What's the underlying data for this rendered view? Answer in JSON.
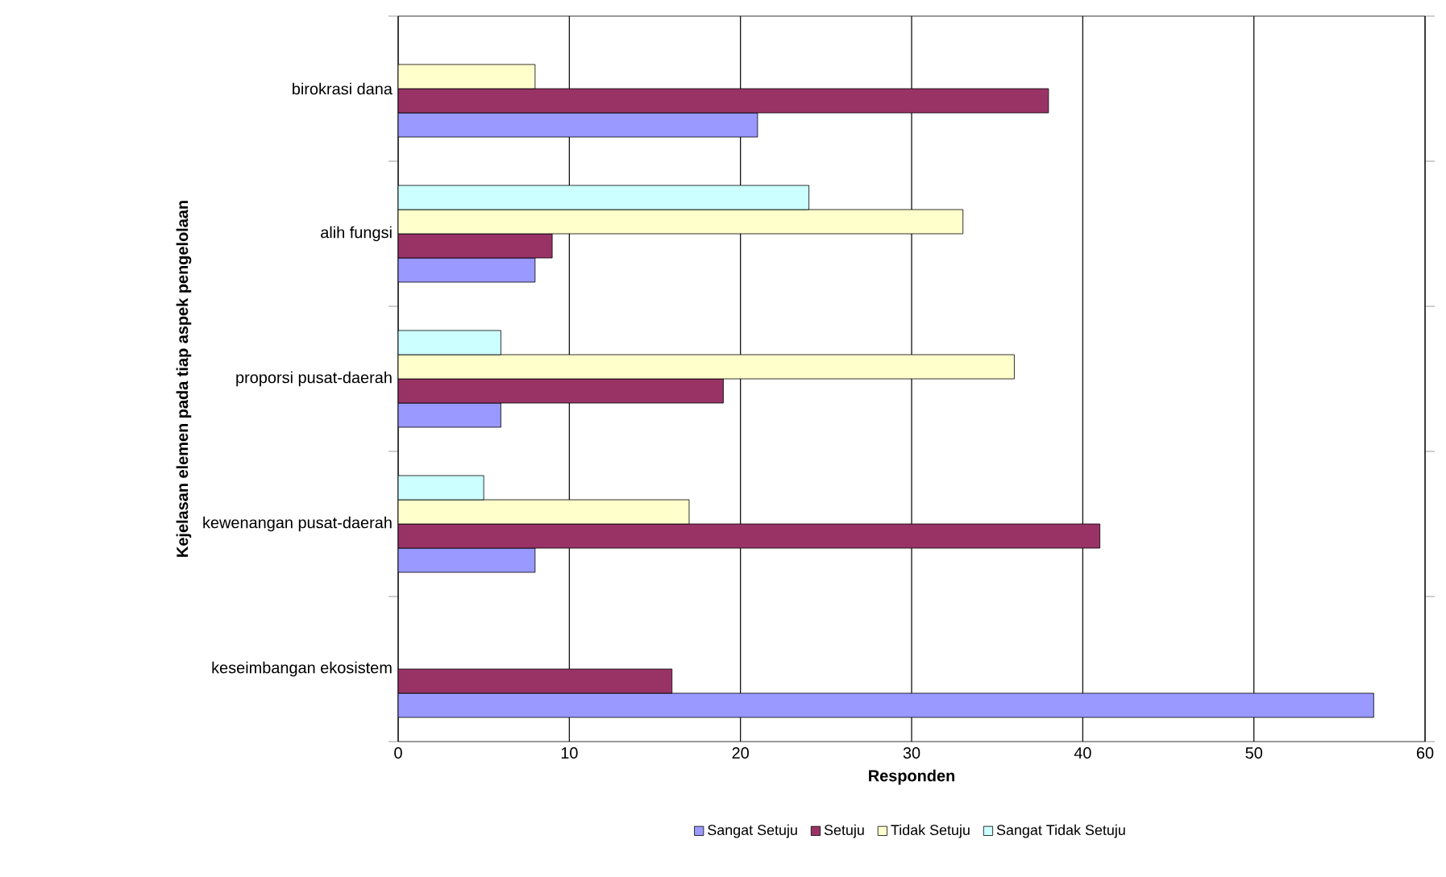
{
  "chart_data": {
    "type": "bar",
    "orientation": "horizontal",
    "xlabel": "Responden",
    "ylabel": "Kejelasan elemen pada tiap aspek pengelolaan",
    "categories": [
      "birokrasi dana",
      "alih fungsi",
      "proporsi pusat-daerah",
      "kewenangan pusat-daerah",
      "keseimbangan ekosistem"
    ],
    "series": [
      {
        "name": "Sangat Setuju",
        "color": "#9999ff",
        "values": [
          21,
          8,
          6,
          8,
          57
        ]
      },
      {
        "name": "Setuju",
        "color": "#993366",
        "values": [
          38,
          9,
          19,
          41,
          16
        ]
      },
      {
        "name": "Tidak Setuju",
        "color": "#ffffcc",
        "values": [
          8,
          33,
          36,
          17,
          null
        ]
      },
      {
        "name": "Sangat Tidak Setuju",
        "color": "#ccffff",
        "values": [
          null,
          24,
          6,
          5,
          null
        ]
      }
    ],
    "xlim": [
      0,
      60
    ],
    "xticks": [
      0,
      10,
      20,
      30,
      40,
      50,
      60
    ],
    "grid": "x",
    "legend": "bottom"
  }
}
